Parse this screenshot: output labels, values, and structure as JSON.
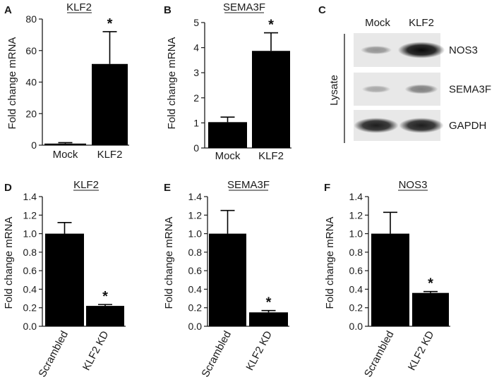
{
  "chart_data": [
    {
      "panel": "A",
      "type": "bar",
      "title": "KLF2",
      "ylabel": "Fold change mRNA",
      "ylim": [
        0,
        80
      ],
      "yticks": [
        "0",
        "20",
        "40",
        "60",
        "80"
      ],
      "ytick_values": [
        0,
        20,
        40,
        60,
        80
      ],
      "categories": [
        "Mock",
        "KLF2"
      ],
      "values": [
        1,
        51.5
      ],
      "errors": [
        0.6,
        20.5
      ],
      "significance": [
        "",
        "*"
      ]
    },
    {
      "panel": "B",
      "type": "bar",
      "title": "SEMA3F",
      "ylabel": "Fold change mRNA",
      "ylim": [
        0,
        5
      ],
      "yticks": [
        "0",
        "1",
        "2",
        "3",
        "4",
        "5"
      ],
      "ytick_values": [
        0,
        1,
        2,
        3,
        4,
        5
      ],
      "categories": [
        "Mock",
        "KLF2"
      ],
      "values": [
        1.03,
        3.87
      ],
      "errors": [
        0.2,
        0.72
      ],
      "significance": [
        "",
        "*"
      ]
    },
    {
      "panel": "D",
      "type": "bar",
      "title": "KLF2",
      "ylabel": "Fold change mRNA",
      "ylim": [
        0,
        1.4
      ],
      "yticks": [
        "0.0",
        "0.2",
        "0.4",
        "0.6",
        "0.8",
        "1.0",
        "1.2",
        "1.4"
      ],
      "ytick_values": [
        0,
        0.2,
        0.4,
        0.6,
        0.8,
        1.0,
        1.2,
        1.4
      ],
      "categories": [
        "Scrambled",
        "KLF2 KD"
      ],
      "values": [
        1.0,
        0.22
      ],
      "errors": [
        0.12,
        0.015
      ],
      "significance": [
        "",
        "*"
      ]
    },
    {
      "panel": "E",
      "type": "bar",
      "title": "SEMA3F",
      "ylabel": "Fold change mRNA",
      "ylim": [
        0,
        1.4
      ],
      "yticks": [
        "0.0",
        "0.2",
        "0.4",
        "0.6",
        "0.8",
        "1.0",
        "1.2",
        "1.4"
      ],
      "ytick_values": [
        0,
        0.2,
        0.4,
        0.6,
        0.8,
        1.0,
        1.2,
        1.4
      ],
      "categories": [
        "Scrambled",
        "KLF2 KD"
      ],
      "values": [
        1.0,
        0.15
      ],
      "errors": [
        0.25,
        0.02
      ],
      "significance": [
        "",
        "*"
      ]
    },
    {
      "panel": "F",
      "type": "bar",
      "title": "NOS3",
      "ylabel": "Fold change mRNA",
      "ylim": [
        0,
        1.4
      ],
      "yticks": [
        "0.0",
        "0.2",
        "0.4",
        "0.6",
        "0.8",
        "1.0",
        "1.2",
        "1.4"
      ],
      "ytick_values": [
        0,
        0.2,
        0.4,
        0.6,
        0.8,
        1.0,
        1.2,
        1.4
      ],
      "categories": [
        "Scrambled",
        "KLF2 KD"
      ],
      "values": [
        1.0,
        0.36
      ],
      "errors": [
        0.23,
        0.015
      ],
      "significance": [
        "",
        "*"
      ]
    }
  ],
  "western_blot": {
    "panel": "C",
    "lanes": [
      "Mock",
      "KLF2"
    ],
    "side_label": "Lysate",
    "rows": [
      {
        "label": "NOS3",
        "intensity": [
          0.25,
          0.95
        ]
      },
      {
        "label": "SEMA3F",
        "intensity": [
          0.15,
          0.35
        ]
      },
      {
        "label": "GAPDH",
        "intensity": [
          0.85,
          0.85
        ]
      }
    ]
  }
}
